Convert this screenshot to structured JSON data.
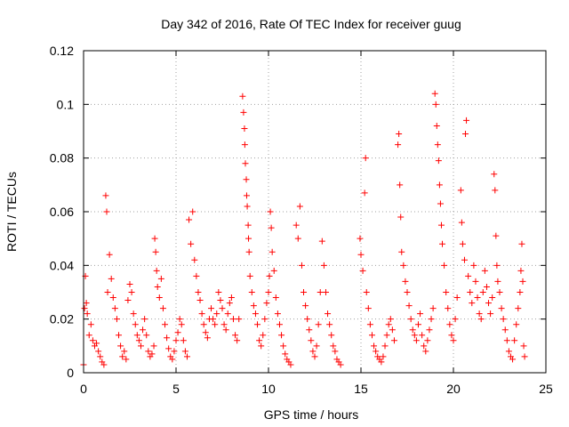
{
  "chart_data": {
    "type": "scatter",
    "title": "Day 342 of 2016, Rate Of TEC Index for receiver guug",
    "xlabel": "GPS time / hours",
    "ylabel": "ROTI / TECUs",
    "xlim": [
      0,
      25
    ],
    "ylim": [
      0,
      0.12
    ],
    "x_ticks": [
      0,
      5,
      10,
      15,
      20,
      25
    ],
    "x_tick_labels": [
      "0",
      "5",
      "10",
      "15",
      "20",
      "25"
    ],
    "y_ticks": [
      0,
      0.02,
      0.04,
      0.06,
      0.08,
      0.1,
      0.12
    ],
    "y_tick_labels": [
      "0",
      "0.02",
      "0.04",
      "0.06",
      "0.08",
      "0.1",
      "0.12"
    ],
    "grid": true,
    "legend": "none",
    "marker": "plus",
    "color": "#ff0000",
    "points": [
      [
        0.0,
        0.003
      ],
      [
        0.05,
        0.024
      ],
      [
        0.1,
        0.036
      ],
      [
        0.15,
        0.026
      ],
      [
        0.2,
        0.022
      ],
      [
        0.3,
        0.014
      ],
      [
        0.4,
        0.018
      ],
      [
        0.5,
        0.012
      ],
      [
        0.6,
        0.01
      ],
      [
        0.7,
        0.011
      ],
      [
        0.8,
        0.008
      ],
      [
        0.9,
        0.006
      ],
      [
        1.0,
        0.004
      ],
      [
        1.1,
        0.003
      ],
      [
        1.2,
        0.066
      ],
      [
        1.25,
        0.06
      ],
      [
        1.3,
        0.03
      ],
      [
        1.4,
        0.044
      ],
      [
        1.5,
        0.035
      ],
      [
        1.6,
        0.028
      ],
      [
        1.7,
        0.024
      ],
      [
        1.8,
        0.02
      ],
      [
        1.9,
        0.014
      ],
      [
        2.0,
        0.01
      ],
      [
        2.1,
        0.006
      ],
      [
        2.2,
        0.008
      ],
      [
        2.3,
        0.005
      ],
      [
        2.4,
        0.027
      ],
      [
        2.5,
        0.033
      ],
      [
        2.6,
        0.03
      ],
      [
        2.7,
        0.022
      ],
      [
        2.8,
        0.018
      ],
      [
        2.9,
        0.014
      ],
      [
        3.0,
        0.012
      ],
      [
        3.1,
        0.01
      ],
      [
        3.2,
        0.016
      ],
      [
        3.3,
        0.02
      ],
      [
        3.4,
        0.014
      ],
      [
        3.5,
        0.008
      ],
      [
        3.6,
        0.006
      ],
      [
        3.7,
        0.007
      ],
      [
        3.8,
        0.01
      ],
      [
        3.85,
        0.05
      ],
      [
        3.9,
        0.045
      ],
      [
        3.95,
        0.038
      ],
      [
        4.0,
        0.032
      ],
      [
        4.1,
        0.028
      ],
      [
        4.2,
        0.035
      ],
      [
        4.3,
        0.024
      ],
      [
        4.4,
        0.018
      ],
      [
        4.5,
        0.013
      ],
      [
        4.6,
        0.009
      ],
      [
        4.7,
        0.006
      ],
      [
        4.8,
        0.005
      ],
      [
        4.9,
        0.008
      ],
      [
        5.0,
        0.012
      ],
      [
        5.1,
        0.015
      ],
      [
        5.2,
        0.02
      ],
      [
        5.3,
        0.018
      ],
      [
        5.4,
        0.012
      ],
      [
        5.5,
        0.008
      ],
      [
        5.6,
        0.006
      ],
      [
        5.7,
        0.057
      ],
      [
        5.8,
        0.048
      ],
      [
        5.9,
        0.06
      ],
      [
        6.0,
        0.042
      ],
      [
        6.1,
        0.036
      ],
      [
        6.2,
        0.03
      ],
      [
        6.3,
        0.027
      ],
      [
        6.4,
        0.022
      ],
      [
        6.5,
        0.018
      ],
      [
        6.6,
        0.015
      ],
      [
        6.7,
        0.013
      ],
      [
        6.8,
        0.02
      ],
      [
        6.9,
        0.024
      ],
      [
        7.0,
        0.02
      ],
      [
        7.1,
        0.018
      ],
      [
        7.2,
        0.022
      ],
      [
        7.3,
        0.03
      ],
      [
        7.4,
        0.027
      ],
      [
        7.5,
        0.024
      ],
      [
        7.6,
        0.018
      ],
      [
        7.7,
        0.016
      ],
      [
        7.8,
        0.022
      ],
      [
        7.9,
        0.026
      ],
      [
        8.0,
        0.028
      ],
      [
        8.1,
        0.02
      ],
      [
        8.2,
        0.014
      ],
      [
        8.3,
        0.012
      ],
      [
        8.4,
        0.02
      ],
      [
        8.6,
        0.103
      ],
      [
        8.65,
        0.097
      ],
      [
        8.7,
        0.091
      ],
      [
        8.72,
        0.085
      ],
      [
        8.75,
        0.078
      ],
      [
        8.8,
        0.072
      ],
      [
        8.82,
        0.066
      ],
      [
        8.85,
        0.062
      ],
      [
        8.9,
        0.055
      ],
      [
        8.92,
        0.05
      ],
      [
        8.95,
        0.045
      ],
      [
        9.0,
        0.036
      ],
      [
        9.1,
        0.03
      ],
      [
        9.2,
        0.025
      ],
      [
        9.3,
        0.022
      ],
      [
        9.4,
        0.018
      ],
      [
        9.5,
        0.012
      ],
      [
        9.6,
        0.01
      ],
      [
        9.7,
        0.014
      ],
      [
        9.8,
        0.02
      ],
      [
        9.9,
        0.026
      ],
      [
        10.0,
        0.03
      ],
      [
        10.05,
        0.036
      ],
      [
        10.1,
        0.06
      ],
      [
        10.15,
        0.054
      ],
      [
        10.2,
        0.045
      ],
      [
        10.3,
        0.038
      ],
      [
        10.4,
        0.028
      ],
      [
        10.5,
        0.022
      ],
      [
        10.6,
        0.018
      ],
      [
        10.7,
        0.014
      ],
      [
        10.8,
        0.01
      ],
      [
        10.9,
        0.007
      ],
      [
        11.0,
        0.005
      ],
      [
        11.1,
        0.004
      ],
      [
        11.2,
        0.003
      ],
      [
        11.5,
        0.055
      ],
      [
        11.6,
        0.05
      ],
      [
        11.7,
        0.062
      ],
      [
        11.8,
        0.04
      ],
      [
        11.9,
        0.03
      ],
      [
        12.0,
        0.025
      ],
      [
        12.1,
        0.02
      ],
      [
        12.2,
        0.016
      ],
      [
        12.3,
        0.012
      ],
      [
        12.4,
        0.008
      ],
      [
        12.5,
        0.006
      ],
      [
        12.6,
        0.01
      ],
      [
        12.7,
        0.018
      ],
      [
        12.8,
        0.03
      ],
      [
        12.9,
        0.049
      ],
      [
        13.0,
        0.04
      ],
      [
        13.1,
        0.03
      ],
      [
        13.2,
        0.022
      ],
      [
        13.3,
        0.018
      ],
      [
        13.4,
        0.014
      ],
      [
        13.5,
        0.01
      ],
      [
        13.6,
        0.008
      ],
      [
        13.7,
        0.005
      ],
      [
        13.8,
        0.004
      ],
      [
        13.9,
        0.003
      ],
      [
        14.95,
        0.05
      ],
      [
        15.0,
        0.044
      ],
      [
        15.1,
        0.038
      ],
      [
        15.2,
        0.067
      ],
      [
        15.25,
        0.08
      ],
      [
        15.3,
        0.03
      ],
      [
        15.4,
        0.024
      ],
      [
        15.5,
        0.018
      ],
      [
        15.6,
        0.014
      ],
      [
        15.7,
        0.01
      ],
      [
        15.8,
        0.008
      ],
      [
        15.9,
        0.006
      ],
      [
        16.0,
        0.005
      ],
      [
        16.1,
        0.004
      ],
      [
        16.2,
        0.006
      ],
      [
        16.3,
        0.01
      ],
      [
        16.4,
        0.014
      ],
      [
        16.5,
        0.018
      ],
      [
        16.6,
        0.02
      ],
      [
        16.7,
        0.016
      ],
      [
        16.8,
        0.012
      ],
      [
        17.0,
        0.085
      ],
      [
        17.05,
        0.089
      ],
      [
        17.1,
        0.07
      ],
      [
        17.15,
        0.058
      ],
      [
        17.2,
        0.045
      ],
      [
        17.3,
        0.04
      ],
      [
        17.4,
        0.034
      ],
      [
        17.5,
        0.03
      ],
      [
        17.6,
        0.025
      ],
      [
        17.7,
        0.02
      ],
      [
        17.8,
        0.016
      ],
      [
        17.9,
        0.014
      ],
      [
        18.0,
        0.012
      ],
      [
        18.1,
        0.018
      ],
      [
        18.2,
        0.022
      ],
      [
        18.3,
        0.014
      ],
      [
        18.4,
        0.01
      ],
      [
        18.5,
        0.008
      ],
      [
        18.6,
        0.012
      ],
      [
        18.7,
        0.016
      ],
      [
        18.8,
        0.02
      ],
      [
        18.9,
        0.024
      ],
      [
        19.0,
        0.104
      ],
      [
        19.05,
        0.1
      ],
      [
        19.1,
        0.092
      ],
      [
        19.15,
        0.085
      ],
      [
        19.2,
        0.079
      ],
      [
        19.25,
        0.07
      ],
      [
        19.3,
        0.063
      ],
      [
        19.35,
        0.055
      ],
      [
        19.4,
        0.048
      ],
      [
        19.5,
        0.04
      ],
      [
        19.6,
        0.03
      ],
      [
        19.7,
        0.024
      ],
      [
        19.8,
        0.018
      ],
      [
        19.9,
        0.014
      ],
      [
        20.0,
        0.012
      ],
      [
        20.1,
        0.02
      ],
      [
        20.2,
        0.028
      ],
      [
        20.4,
        0.068
      ],
      [
        20.45,
        0.056
      ],
      [
        20.5,
        0.048
      ],
      [
        20.6,
        0.042
      ],
      [
        20.65,
        0.089
      ],
      [
        20.7,
        0.094
      ],
      [
        20.8,
        0.036
      ],
      [
        20.9,
        0.03
      ],
      [
        21.0,
        0.026
      ],
      [
        21.1,
        0.04
      ],
      [
        21.2,
        0.034
      ],
      [
        21.3,
        0.028
      ],
      [
        21.4,
        0.022
      ],
      [
        21.5,
        0.02
      ],
      [
        21.6,
        0.03
      ],
      [
        21.7,
        0.038
      ],
      [
        21.8,
        0.032
      ],
      [
        21.9,
        0.026
      ],
      [
        22.0,
        0.022
      ],
      [
        22.1,
        0.028
      ],
      [
        22.2,
        0.074
      ],
      [
        22.25,
        0.068
      ],
      [
        22.3,
        0.051
      ],
      [
        22.35,
        0.04
      ],
      [
        22.4,
        0.034
      ],
      [
        22.5,
        0.03
      ],
      [
        22.6,
        0.024
      ],
      [
        22.7,
        0.02
      ],
      [
        22.8,
        0.016
      ],
      [
        22.9,
        0.012
      ],
      [
        23.0,
        0.008
      ],
      [
        23.1,
        0.006
      ],
      [
        23.2,
        0.005
      ],
      [
        23.3,
        0.012
      ],
      [
        23.4,
        0.018
      ],
      [
        23.5,
        0.024
      ],
      [
        23.6,
        0.03
      ],
      [
        23.65,
        0.038
      ],
      [
        23.7,
        0.048
      ],
      [
        23.75,
        0.034
      ],
      [
        23.8,
        0.01
      ],
      [
        23.85,
        0.006
      ]
    ]
  }
}
